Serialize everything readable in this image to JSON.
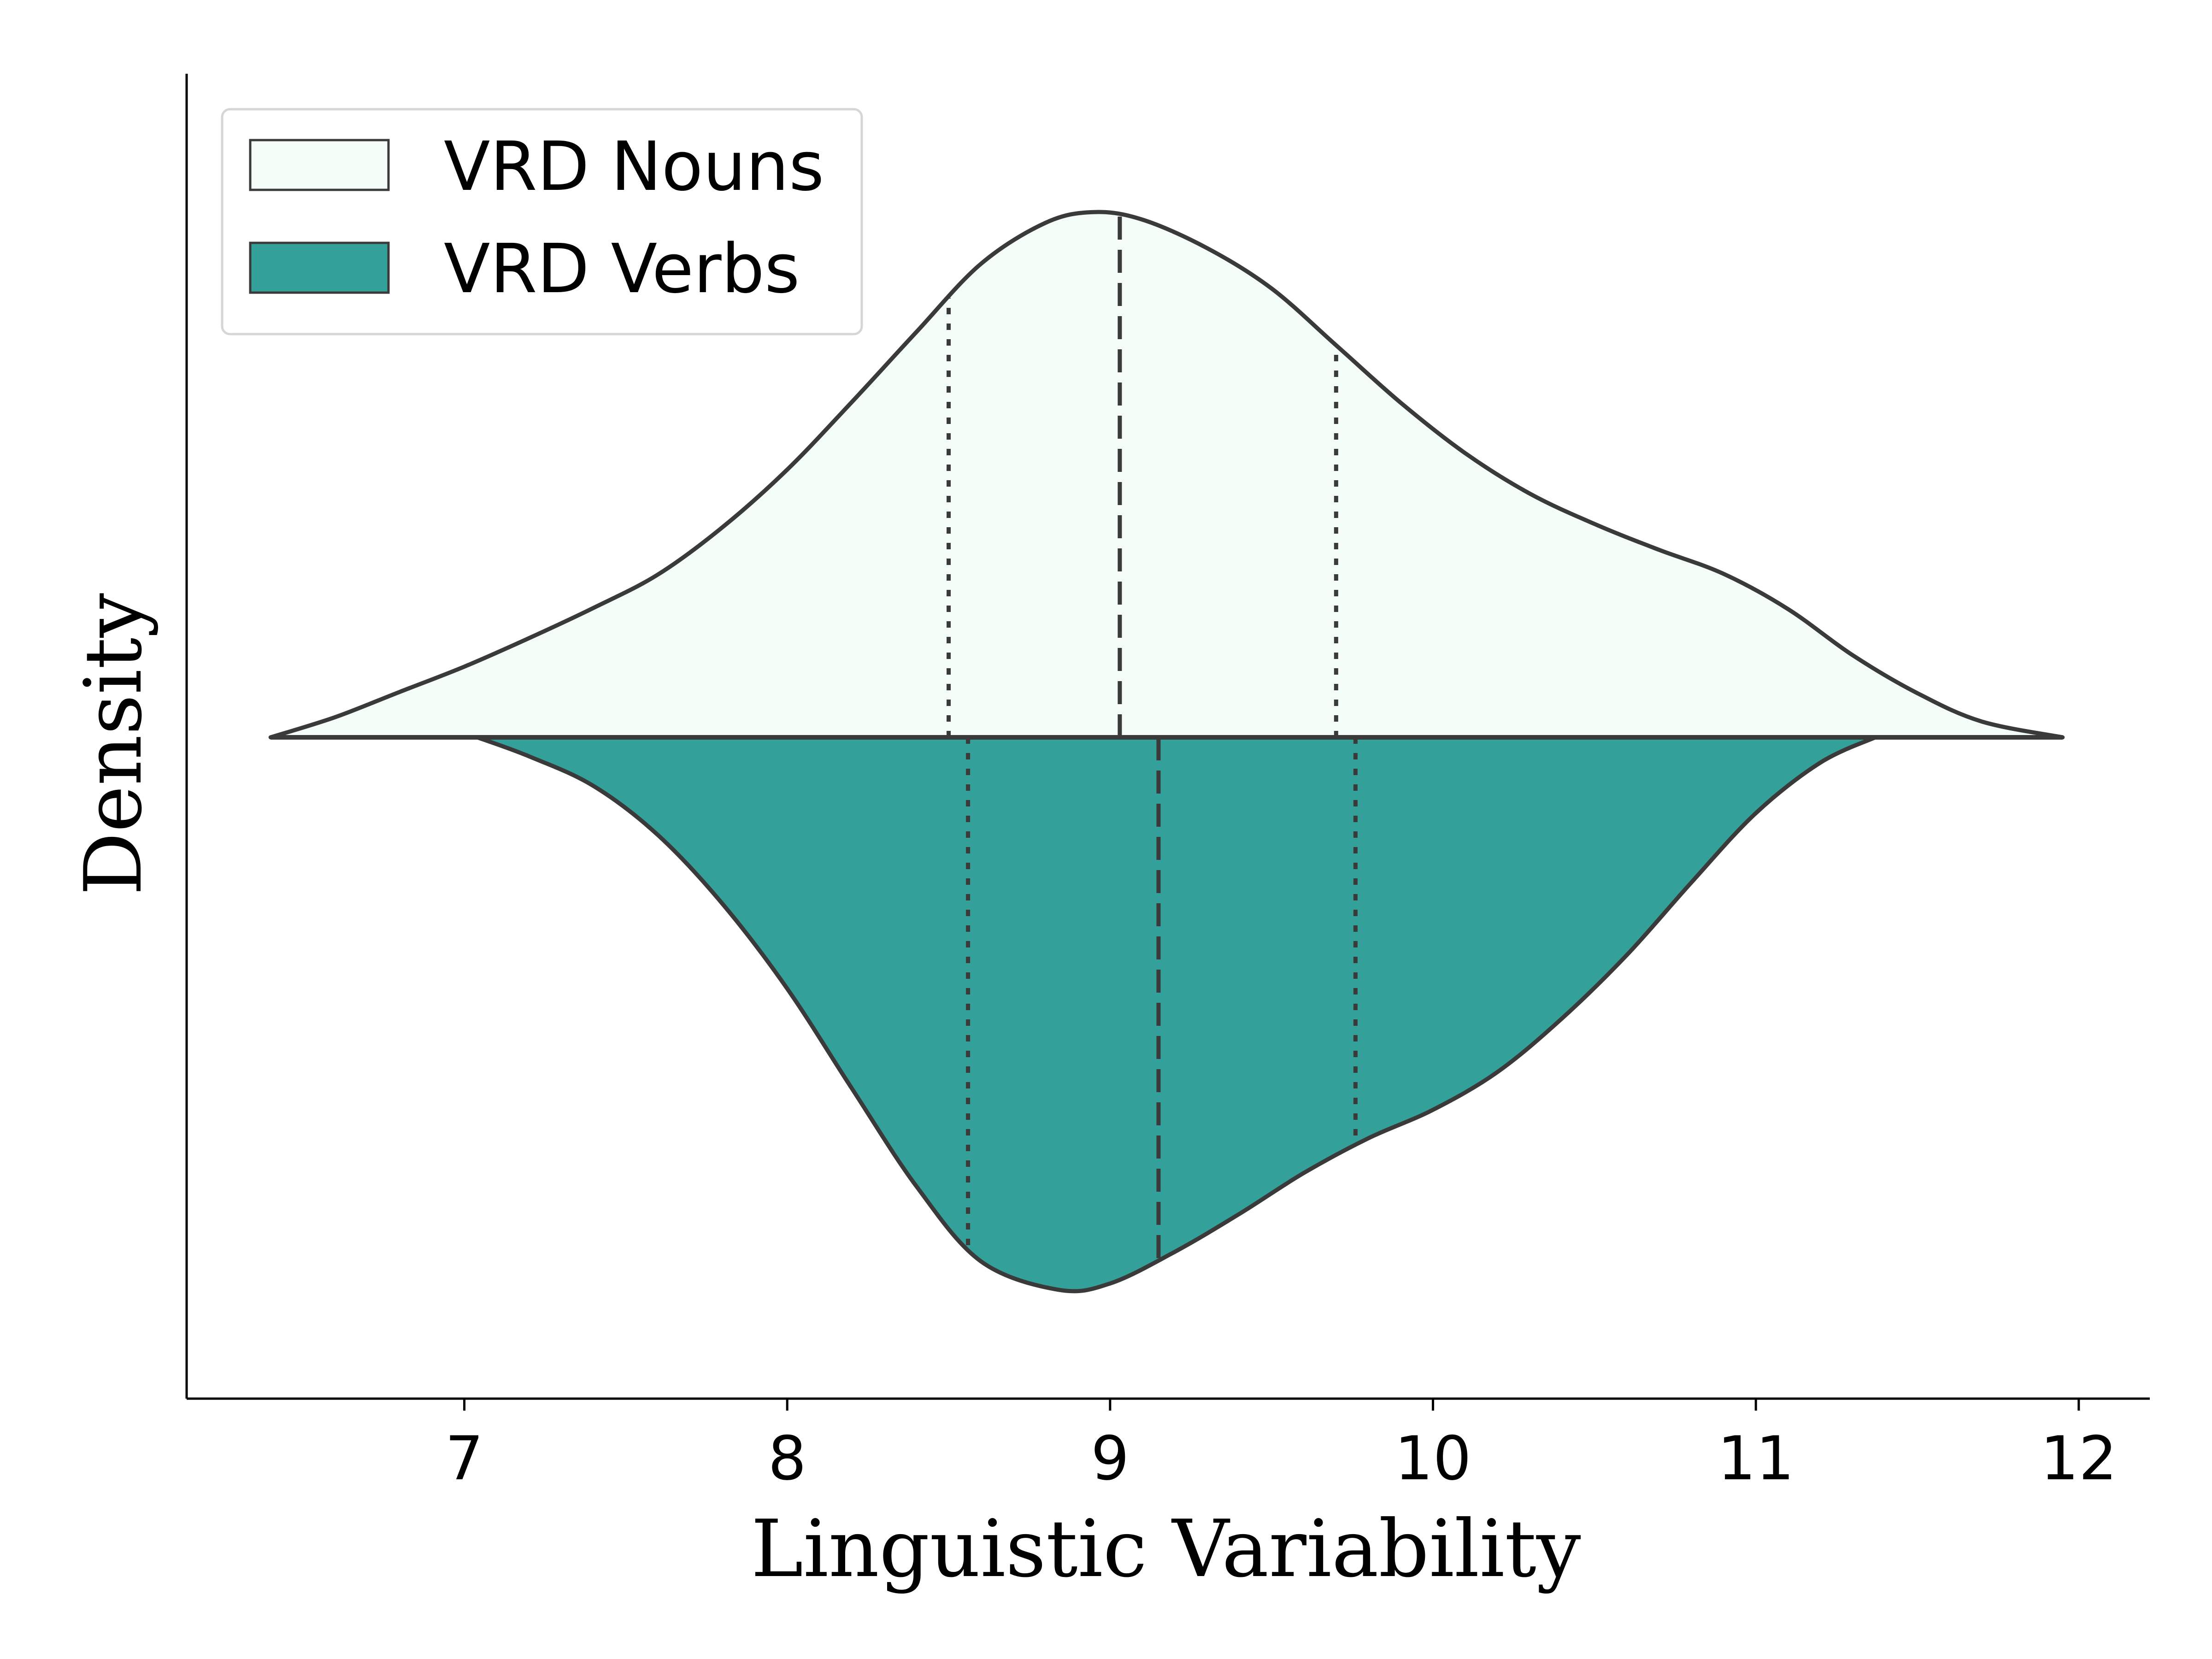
{
  "chart_data": {
    "type": "violin",
    "xlabel": "Linguistic Variability",
    "ylabel": "Density",
    "xlim": [
      6.14,
      12.22
    ],
    "x_ticks": [
      "7",
      "8",
      "9",
      "10",
      "11",
      "12"
    ],
    "y_ticks_visible": false,
    "legend_position": "top-left",
    "series": [
      {
        "name": "VRD Nouns",
        "side": "upper",
        "fill": "#f3fcf6",
        "edge": "#3a3a3a",
        "density": [
          [
            6.4,
            0.0
          ],
          [
            6.6,
            0.032
          ],
          [
            6.8,
            0.072
          ],
          [
            7.0,
            0.112
          ],
          [
            7.2,
            0.157
          ],
          [
            7.4,
            0.205
          ],
          [
            7.6,
            0.258
          ],
          [
            7.8,
            0.333
          ],
          [
            8.0,
            0.424
          ],
          [
            8.2,
            0.531
          ],
          [
            8.4,
            0.642
          ],
          [
            8.6,
            0.75
          ],
          [
            8.8,
            0.815
          ],
          [
            8.95,
            0.832
          ],
          [
            9.1,
            0.82
          ],
          [
            9.3,
            0.775
          ],
          [
            9.5,
            0.711
          ],
          [
            9.7,
            0.621
          ],
          [
            9.9,
            0.53
          ],
          [
            10.1,
            0.45
          ],
          [
            10.3,
            0.386
          ],
          [
            10.5,
            0.338
          ],
          [
            10.7,
            0.297
          ],
          [
            10.9,
            0.259
          ],
          [
            11.1,
            0.203
          ],
          [
            11.3,
            0.13
          ],
          [
            11.5,
            0.07
          ],
          [
            11.7,
            0.025
          ],
          [
            11.95,
            0.0
          ]
        ],
        "quartiles": {
          "q1": 8.5,
          "median": 9.03,
          "q3": 9.7
        }
      },
      {
        "name": "VRD Verbs",
        "side": "lower",
        "fill": "#33a19a",
        "edge": "#3a3a3a",
        "density": [
          [
            7.04,
            0.0
          ],
          [
            7.2,
            0.03
          ],
          [
            7.4,
            0.077
          ],
          [
            7.6,
            0.155
          ],
          [
            7.8,
            0.264
          ],
          [
            8.0,
            0.398
          ],
          [
            8.2,
            0.556
          ],
          [
            8.4,
            0.711
          ],
          [
            8.6,
            0.83
          ],
          [
            8.84,
            0.875
          ],
          [
            9.0,
            0.865
          ],
          [
            9.2,
            0.815
          ],
          [
            9.4,
            0.755
          ],
          [
            9.6,
            0.69
          ],
          [
            9.8,
            0.635
          ],
          [
            10.0,
            0.59
          ],
          [
            10.2,
            0.53
          ],
          [
            10.4,
            0.445
          ],
          [
            10.6,
            0.345
          ],
          [
            10.8,
            0.23
          ],
          [
            11.0,
            0.12
          ],
          [
            11.2,
            0.04
          ],
          [
            11.37,
            0.0
          ]
        ],
        "quartiles": {
          "q1": 8.56,
          "median": 9.15,
          "q3": 9.76
        }
      }
    ]
  }
}
